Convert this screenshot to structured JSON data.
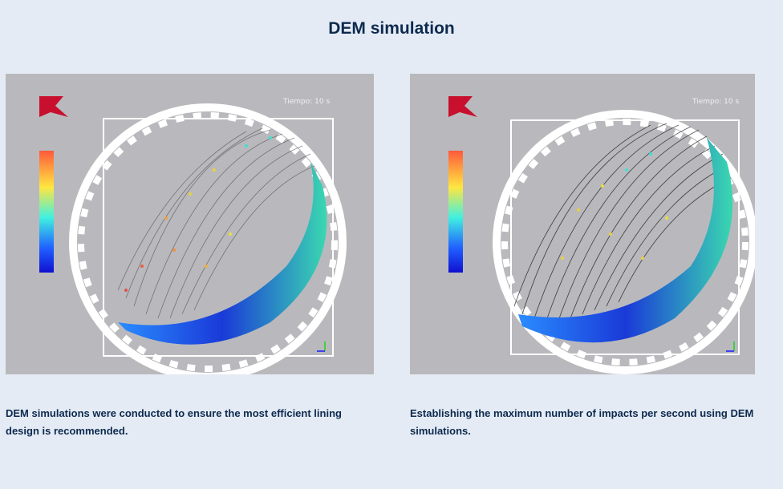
{
  "title": "DEM simulation",
  "panels": [
    {
      "time_label": "Tiempo: 10 s",
      "caption": "DEM simulations were conducted to ensure the most efficient lining design is recommended."
    },
    {
      "time_label": "Tiempo: 10 s",
      "caption": "Establishing the maximum number of impacts per second using DEM simulations."
    }
  ],
  "colors": {
    "background": "#e4ebf5",
    "title": "#0d2a4e",
    "logo": "#c8102e",
    "panel": "#b9b9bd"
  }
}
